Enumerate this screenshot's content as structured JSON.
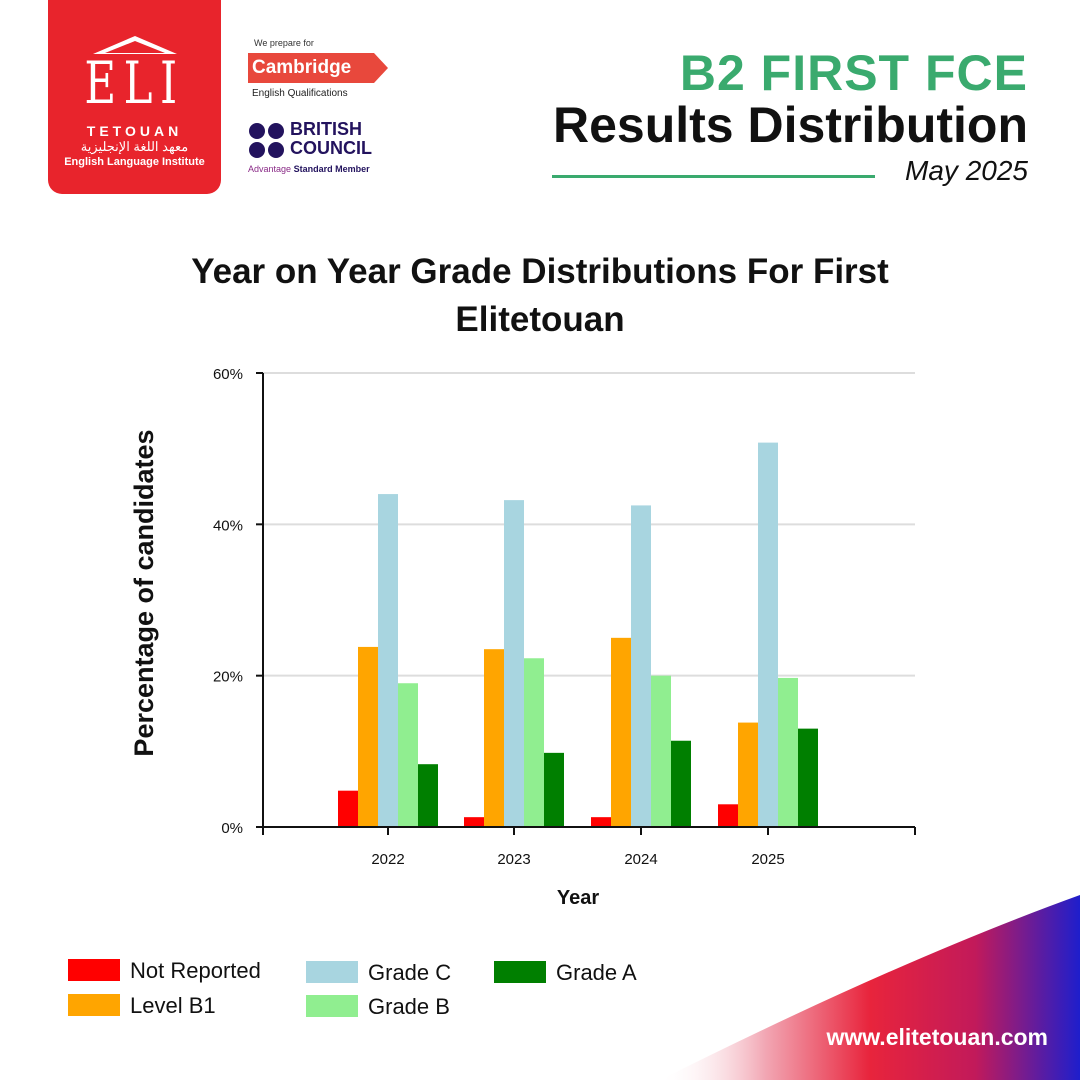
{
  "logo": {
    "letters": "ELI",
    "city": "TETOUAN",
    "arabic": "معهد اللغة الإنجليزية",
    "name": "English Language Institute"
  },
  "partners": {
    "cambridge_prep": "We prepare for",
    "cambridge_name": "Cambridge",
    "cambridge_qual": "English Qualifications",
    "bc_line1": "BRITISH",
    "bc_line2": "COUNCIL",
    "bc_member_a": "Advantage",
    "bc_member_b": "Standard Member"
  },
  "header": {
    "title_main": "B2 FIRST FCE",
    "title_sub": "Results Distribution",
    "date": "May 2025"
  },
  "colors": {
    "brand_red": "#e8242c",
    "brand_green": "#3aaa6e"
  },
  "chart_data": {
    "type": "bar",
    "title": "Year on Year Grade Distributions For First Elitetouan",
    "xlabel": "Year",
    "ylabel": "Percentage of candidates",
    "categories": [
      "2022",
      "2023",
      "2024",
      "2025"
    ],
    "ylim": [
      0,
      60
    ],
    "yticks": [
      "0%",
      "20%",
      "40%",
      "60%"
    ],
    "grid": true,
    "legend_position": "bottom",
    "series": [
      {
        "name": "Not Reported",
        "color": "#ff0000",
        "values": [
          4.8,
          1.3,
          1.3,
          3.0
        ]
      },
      {
        "name": "Level B1",
        "color": "#ffa500",
        "values": [
          23.8,
          23.5,
          25.0,
          13.8
        ]
      },
      {
        "name": "Grade C",
        "color": "#a8d5e0",
        "values": [
          44.0,
          43.2,
          42.5,
          50.8
        ]
      },
      {
        "name": "Grade B",
        "color": "#90ee90",
        "values": [
          19.0,
          22.3,
          20.0,
          19.7
        ]
      },
      {
        "name": "Grade A",
        "color": "#007f00",
        "values": [
          8.3,
          9.8,
          11.4,
          13.0
        ]
      }
    ]
  },
  "footer": {
    "url": "www.elitetouan.com"
  }
}
